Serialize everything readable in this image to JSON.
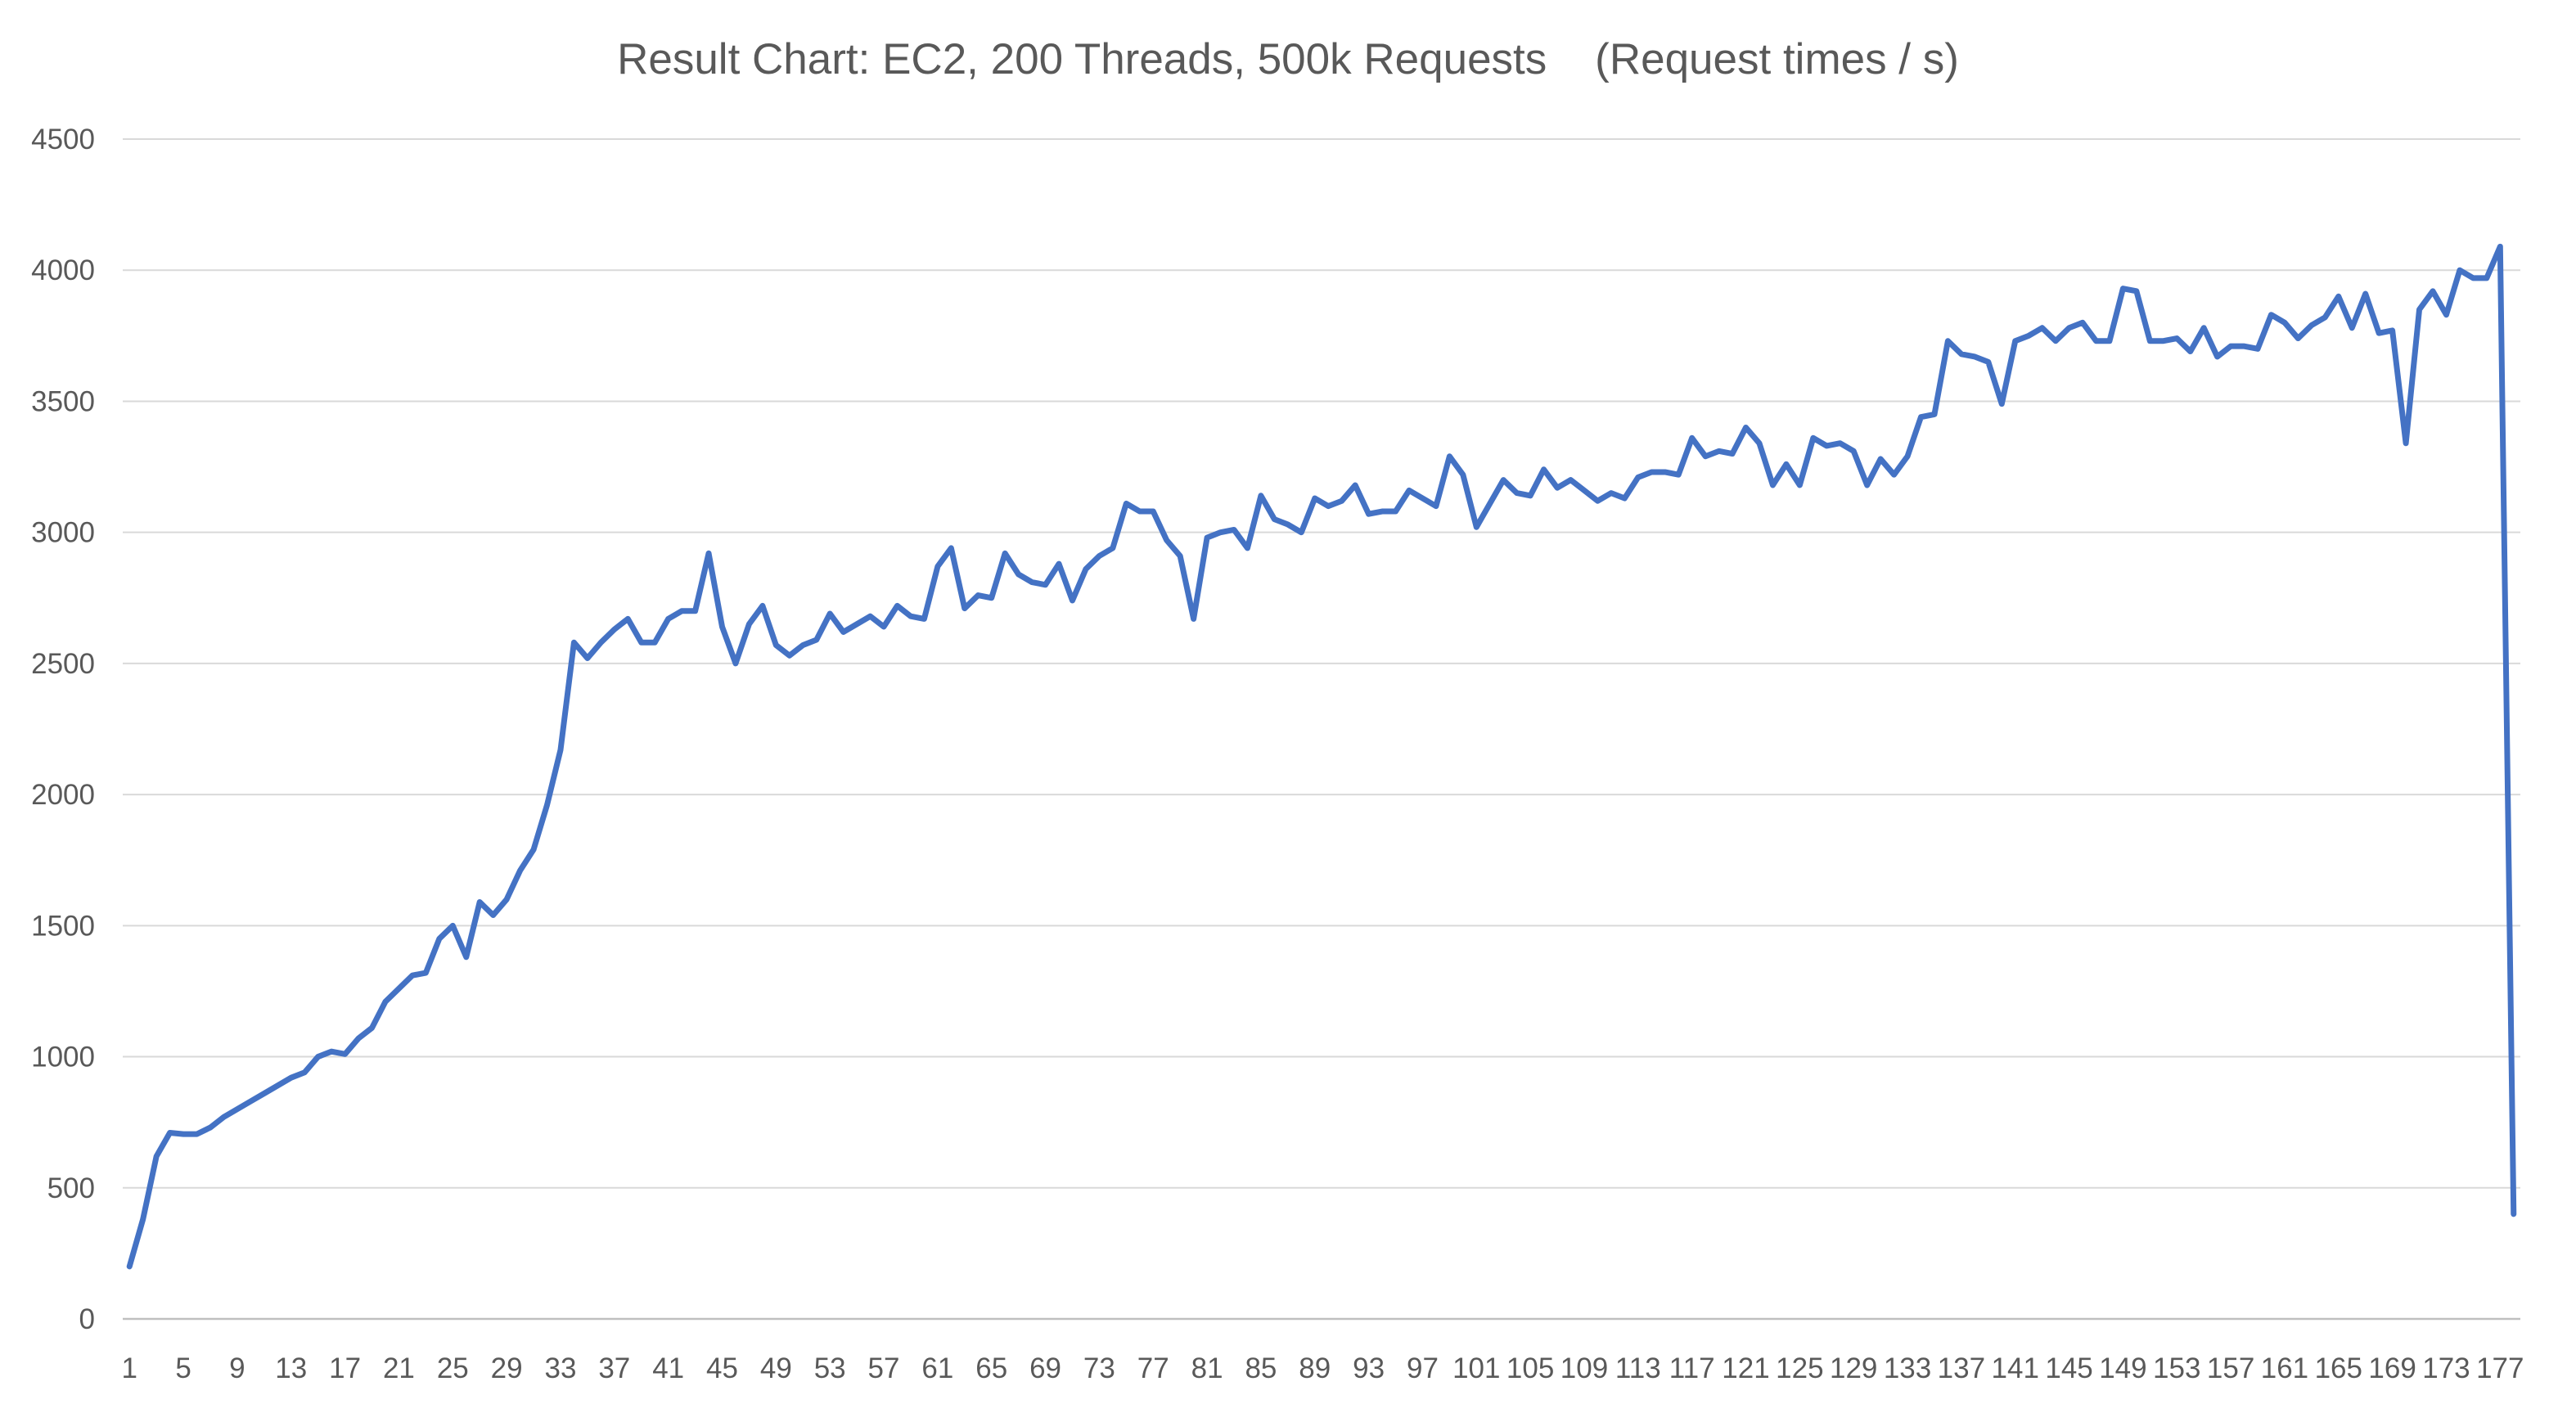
{
  "chart_data": {
    "type": "line",
    "title": "Result Chart: EC2, 200 Threads, 500k Requests    (Request times / s)",
    "xlabel": "",
    "ylabel": "",
    "ylim": [
      0,
      4500
    ],
    "yticks": [
      0,
      500,
      1000,
      1500,
      2000,
      2500,
      3000,
      3500,
      4000,
      4500
    ],
    "xlim": [
      1,
      177
    ],
    "xtick_labels": [
      1,
      5,
      9,
      13,
      17,
      21,
      25,
      29,
      33,
      37,
      41,
      45,
      49,
      53,
      57,
      61,
      65,
      69,
      73,
      77,
      81,
      85,
      89,
      93,
      97,
      101,
      105,
      109,
      113,
      117,
      121,
      125,
      129,
      133,
      137,
      141,
      145,
      149,
      153,
      157,
      161,
      165,
      169,
      173,
      177
    ],
    "grid": true,
    "legend": "none",
    "color": "#4472c4",
    "series": [
      {
        "values": [
          200,
          380,
          620,
          710,
          705,
          705,
          730,
          770,
          800,
          830,
          860,
          890,
          920,
          940,
          1000,
          1020,
          1010,
          1070,
          1110,
          1210,
          1260,
          1310,
          1320,
          1450,
          1500,
          1380,
          1590,
          1540,
          1600,
          1710,
          1790,
          1960,
          2170,
          2580,
          2520,
          2580,
          2630,
          2670,
          2580,
          2580,
          2670,
          2700,
          2700,
          2920,
          2640,
          2500,
          2650,
          2720,
          2570,
          2530,
          2570,
          2590,
          2690,
          2620,
          2650,
          2680,
          2640,
          2720,
          2680,
          2670,
          2870,
          2940,
          2710,
          2760,
          2750,
          2920,
          2840,
          2810,
          2800,
          2880,
          2740,
          2860,
          2910,
          2940,
          3110,
          3080,
          3080,
          2970,
          2910,
          2670,
          2980,
          3000,
          3010,
          2940,
          3140,
          3050,
          3030,
          3000,
          3130,
          3100,
          3120,
          3180,
          3070,
          3080,
          3080,
          3160,
          3130,
          3100,
          3290,
          3220,
          3020,
          3110,
          3200,
          3150,
          3140,
          3240,
          3170,
          3200,
          3160,
          3120,
          3150,
          3130,
          3210,
          3230,
          3230,
          3220,
          3360,
          3290,
          3310,
          3300,
          3400,
          3340,
          3180,
          3260,
          3180,
          3360,
          3330,
          3340,
          3310,
          3180,
          3280,
          3220,
          3290,
          3440,
          3450,
          3730,
          3680,
          3670,
          3650,
          3490,
          3730,
          3750,
          3780,
          3730,
          3780,
          3800,
          3730,
          3730,
          3930,
          3920,
          3730,
          3730,
          3740,
          3690,
          3780,
          3670,
          3710,
          3710,
          3700,
          3830,
          3800,
          3740,
          3790,
          3820,
          3900,
          3780,
          3910,
          3760,
          3770,
          3340,
          3850,
          3920,
          3830,
          4000,
          3970,
          3970,
          4090,
          400
        ]
      }
    ]
  }
}
